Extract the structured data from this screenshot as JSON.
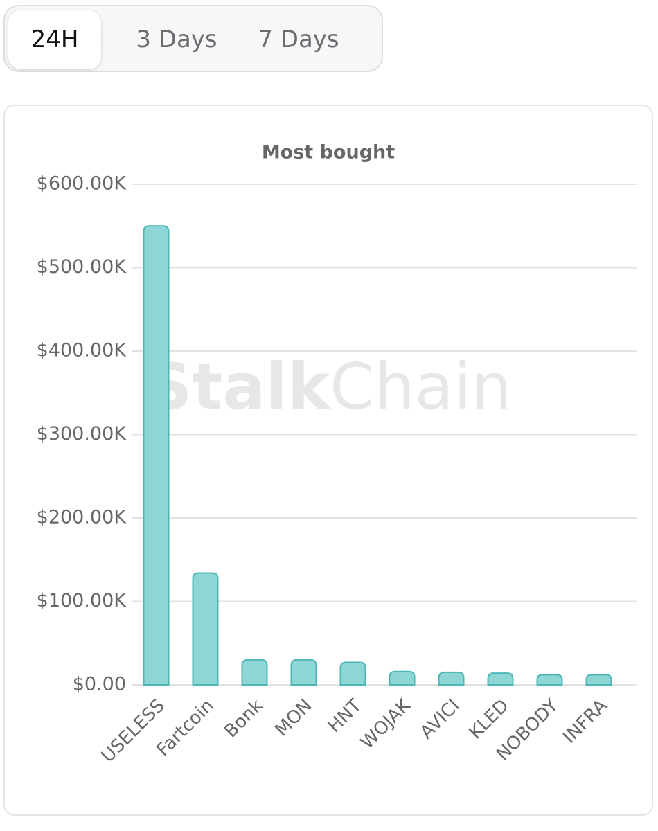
{
  "tabs": [
    "24H",
    "3 Days",
    "7 Days"
  ],
  "active_tab": 0,
  "watermark": [
    "Stalk",
    "Chain"
  ],
  "chart_data": {
    "type": "bar",
    "title": "Most bought",
    "categories": [
      "USELESS",
      "Fartcoin",
      "Bonk",
      "MON",
      "HNT",
      "WOJAK",
      "AVICI",
      "KLED",
      "NOBODY",
      "INFRA"
    ],
    "values": [
      550000,
      134000,
      30000,
      30000,
      27000,
      16000,
      15000,
      14000,
      12000,
      12000
    ],
    "color": "#8ed6d6",
    "edge_color": "#4db7b7",
    "ylim": [
      0,
      600000
    ],
    "yticks": [
      {
        "value": 0,
        "label": "$0.00"
      },
      {
        "value": 100000,
        "label": "$100.00K"
      },
      {
        "value": 200000,
        "label": "$200.00K"
      },
      {
        "value": 300000,
        "label": "$300.00K"
      },
      {
        "value": 400000,
        "label": "$400.00K"
      },
      {
        "value": 500000,
        "label": "$500.00K"
      },
      {
        "value": 600000,
        "label": "$600.00K"
      }
    ],
    "grid": true
  }
}
